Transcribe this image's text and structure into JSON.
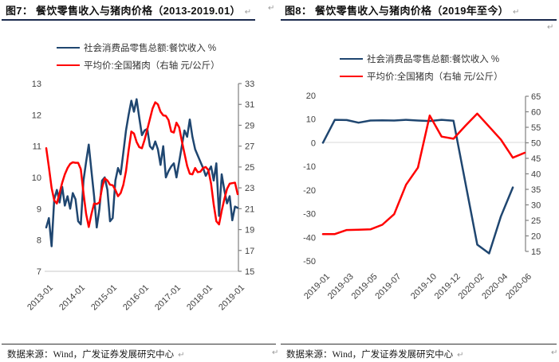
{
  "colors": {
    "series_blue": "#1f4670",
    "series_red": "#ff0000",
    "title_rule": "#1b2a4e",
    "axis_line": "#808080",
    "grid_line": "#d9d9d9",
    "baseline": "#c9c9c9",
    "tick_text": "#404040",
    "return_mark_color": "#9a9a9a"
  },
  "return_mark": "↵",
  "panels": [
    {
      "title": "图7： 餐饮零售收入与猪肉价格（2013-2019.01）",
      "source": "数据来源：Wind，广发证券发展研究中心",
      "legend": [
        {
          "label": "社会消费品零售总额:餐饮收入 %"
        },
        {
          "label": "平均价:全国猪肉（右轴 元/公斤）"
        }
      ]
    },
    {
      "title": "图8： 餐饮零售收入与猪肉价格（2019年至今）",
      "source": "数据来源：Wind，广发证券发展研究中心",
      "legend": [
        {
          "label": "社会消费品零售总额:餐饮收入 %"
        },
        {
          "label": "平均价:全国猪肉（右轴 元/公斤）"
        }
      ]
    }
  ],
  "chart_data": [
    {
      "type": "line",
      "title": "餐饮零售收入与猪肉价格（2013-2019.01）",
      "n_points": 73,
      "x_tick_labels": [
        "2013-01",
        "2014-01",
        "2015-01",
        "2016-01",
        "2017-01",
        "2018-01",
        "2019-01"
      ],
      "x_tick_indices": [
        0,
        12,
        24,
        36,
        48,
        60,
        72
      ],
      "left_axis": {
        "min": 7,
        "max": 13,
        "ticks": [
          13,
          12,
          11,
          10,
          9,
          8,
          7
        ]
      },
      "right_axis": {
        "min": 15,
        "max": 33,
        "ticks": [
          33,
          31,
          29,
          27,
          25,
          23,
          21,
          19,
          17,
          15
        ],
        "label": "右轴 元/公斤"
      },
      "grid": "baseline-only",
      "legend_position": "top",
      "series": [
        {
          "name": "社会消费品零售总额:餐饮收入 %",
          "axis": "left",
          "color": "#1f4670",
          "values": [
            8.4,
            8.7,
            7.8,
            9.3,
            9.6,
            9.2,
            9.7,
            9.1,
            9.4,
            9.0,
            9.5,
            9.3,
            8.6,
            8.5,
            9.9,
            10.5,
            11.05,
            10.2,
            9.4,
            8.4,
            9.0,
            9.9,
            10.0,
            9.6,
            8.6,
            8.7,
            9.9,
            10.3,
            10.1,
            10.8,
            11.5,
            12.0,
            12.45,
            12.1,
            12.5,
            11.9,
            11.35,
            11.5,
            11.55,
            11.0,
            10.9,
            11.15,
            10.9,
            10.4,
            11.0,
            10.0,
            10.2,
            10.35,
            10.45,
            10.0,
            10.5,
            11.0,
            11.5,
            11.3,
            11.85,
            11.3,
            10.9,
            10.7,
            10.5,
            10.3,
            10.05,
            10.2,
            10.35,
            9.9,
            10.45,
            8.77,
            10.1,
            9.6,
            9.17,
            9.4,
            8.63,
            9.07,
            9.03
          ]
        },
        {
          "name": "平均价:全国猪肉（右轴 元/公斤）",
          "axis": "right",
          "color": "#ff0000",
          "values": [
            26.8,
            25.0,
            23.0,
            21.8,
            21.5,
            22.5,
            23.5,
            24.3,
            24.9,
            25.3,
            25.45,
            25.4,
            25.4,
            24.8,
            22.5,
            20.5,
            19.25,
            20.5,
            21.5,
            21.45,
            21.6,
            23.0,
            23.9,
            23.7,
            23.3,
            23.25,
            22.8,
            22.2,
            22.5,
            23.3,
            24.6,
            26.6,
            28.4,
            28.2,
            27.4,
            26.9,
            26.8,
            27.6,
            28.6,
            29.6,
            30.6,
            31.2,
            31.0,
            30.3,
            29.95,
            29.9,
            29.5,
            28.4,
            28.3,
            29.25,
            28.8,
            27.5,
            26.3,
            25.1,
            24.35,
            24.3,
            24.9,
            24.5,
            24.55,
            24.9,
            25.0,
            24.7,
            23.4,
            21.4,
            19.8,
            19.5,
            20.8,
            21.9,
            22.9,
            23.4,
            23.45,
            23.5,
            22.4
          ]
        }
      ]
    },
    {
      "type": "line",
      "title": "餐饮零售收入与猪肉价格（2019年至今）",
      "n_points": 18,
      "x_tick_labels": [
        "2019-01",
        "2019-03",
        "2019-05",
        "2019-07",
        "2019-10",
        "2019-12",
        "2020-02",
        "2020-04",
        "2020-06"
      ],
      "x_tick_indices": [
        0,
        2,
        4,
        6,
        9,
        11,
        13,
        15,
        17
      ],
      "left_axis": {
        "min": -50,
        "max": 20,
        "ticks": [
          20,
          10,
          0,
          -10,
          -20,
          -30,
          -40,
          -50
        ]
      },
      "right_axis": {
        "min": 15,
        "max": 65,
        "ticks": [
          65,
          60,
          55,
          50,
          45,
          40,
          35,
          30,
          25,
          20,
          15
        ],
        "label": "右轴 元/公斤"
      },
      "grid": "zero-line",
      "legend_position": "top",
      "series": [
        {
          "name": "社会消费品零售总额:餐饮收入 %",
          "axis": "left",
          "color": "#1f4670",
          "values": [
            0,
            9.7,
            9.6,
            8.5,
            9.4,
            9.5,
            9.4,
            9.7,
            9.4,
            9.2,
            9.7,
            9.3,
            null,
            -43.1,
            -46.8,
            -31.1,
            -18.9,
            null
          ]
        },
        {
          "name": "平均价:全国猪肉（右轴 元/公斤）",
          "axis": "right",
          "color": "#ff0000",
          "values": [
            20.6,
            20.6,
            21.9,
            22.0,
            22.1,
            23.6,
            27.0,
            36.5,
            42.0,
            58.8,
            52.0,
            51.3,
            55.5,
            59.4,
            55.2,
            51.0,
            45.2,
            46.8
          ]
        }
      ]
    }
  ]
}
